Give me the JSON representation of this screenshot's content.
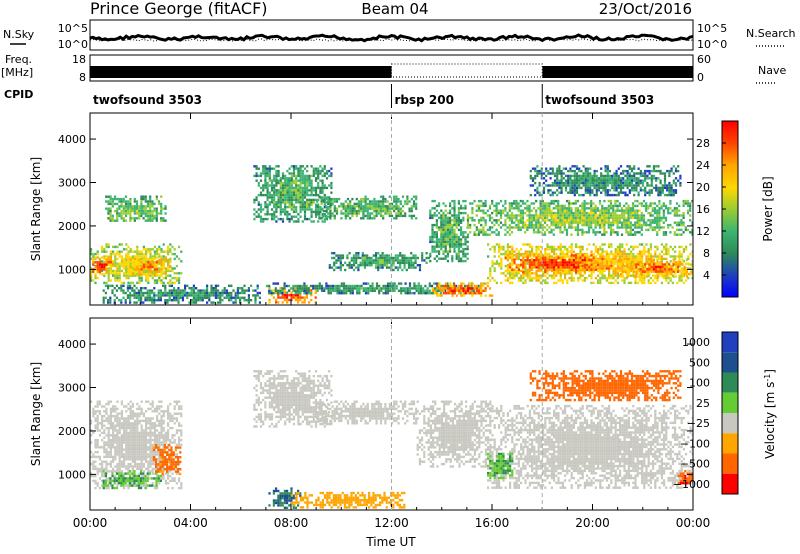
{
  "header": {
    "station": "Prince George (fitACF)",
    "beam": "Beam 04",
    "date": "23/Oct/2016"
  },
  "top_panels": {
    "nsky_label": "N.Sky",
    "nsearch_label": "N.Search",
    "noise_ticks": [
      "10^5",
      "10^0"
    ],
    "freq_label": "Freq.",
    "freq_unit": "[MHz]",
    "freq_ticks": [
      "18",
      "8"
    ],
    "nave_label": "Nave",
    "nave_ticks": [
      "60",
      "0"
    ],
    "cpid_label": "CPID",
    "cpid_segments": [
      {
        "label": "twofsound 3503",
        "start": "00:00",
        "end": "12:00"
      },
      {
        "label": "rbsp 200",
        "start": "12:00",
        "end": "18:00"
      },
      {
        "label": "twofsound 3503",
        "start": "18:00",
        "end": "24:00"
      }
    ]
  },
  "colors": {
    "power": [
      "#0000ff",
      "#1e3fbf",
      "#2e8b57",
      "#3cb371",
      "#9acd32",
      "#ffd700",
      "#ffa500",
      "#ff4500",
      "#ff0000"
    ],
    "velocity": [
      "#2040c0",
      "#1e5090",
      "#2e8b57",
      "#66cc33",
      "#c8c8c0",
      "#ffa500",
      "#ff6600",
      "#ff0000"
    ]
  },
  "chart_data": [
    {
      "type": "heatmap",
      "quantity": "Power",
      "xlabel": "Time UT",
      "ylabel": "Slant Range [km]",
      "xlim": [
        0,
        24
      ],
      "ylim": [
        180,
        4600
      ],
      "xticks": [
        "00:00",
        "04:00",
        "08:00",
        "12:00",
        "16:00",
        "20:00",
        "00:00"
      ],
      "yticks": [
        1000,
        2000,
        3000,
        4000
      ],
      "colorbar": {
        "label": "Power [dB]",
        "ticks": [
          4,
          8,
          12,
          16,
          20,
          24,
          28
        ],
        "range": [
          0,
          32
        ]
      },
      "regions": [
        {
          "t": [
            0.0,
            3.6
          ],
          "r": [
            700,
            1600
          ],
          "level": 0.62
        },
        {
          "t": [
            0.0,
            0.9
          ],
          "r": [
            900,
            1300
          ],
          "level": 0.9
        },
        {
          "t": [
            1.4,
            3.2
          ],
          "r": [
            900,
            1300
          ],
          "level": 0.8
        },
        {
          "t": [
            0.6,
            3.0
          ],
          "r": [
            2100,
            2700
          ],
          "level": 0.45
        },
        {
          "t": [
            0.5,
            6.8
          ],
          "r": [
            250,
            650
          ],
          "level": 0.3
        },
        {
          "t": [
            6.5,
            9.6
          ],
          "r": [
            2100,
            3400
          ],
          "level": 0.38
        },
        {
          "t": [
            7.1,
            9.0
          ],
          "r": [
            250,
            600
          ],
          "level": 0.92
        },
        {
          "t": [
            7.0,
            15.5
          ],
          "r": [
            450,
            700
          ],
          "level": 0.32
        },
        {
          "t": [
            9.0,
            13.0
          ],
          "r": [
            2200,
            2700
          ],
          "level": 0.42
        },
        {
          "t": [
            9.5,
            13.5
          ],
          "r": [
            1000,
            1400
          ],
          "level": 0.35
        },
        {
          "t": [
            13.6,
            16.0
          ],
          "r": [
            400,
            700
          ],
          "level": 0.9
        },
        {
          "t": [
            13.5,
            15.0
          ],
          "r": [
            1200,
            2600
          ],
          "level": 0.4
        },
        {
          "t": [
            15.8,
            24.0
          ],
          "r": [
            700,
            1600
          ],
          "level": 0.72
        },
        {
          "t": [
            16.5,
            20.5
          ],
          "r": [
            950,
            1350
          ],
          "level": 0.95
        },
        {
          "t": [
            21.0,
            24.0
          ],
          "r": [
            850,
            1250
          ],
          "level": 0.85
        },
        {
          "t": [
            15.0,
            24.0
          ],
          "r": [
            1800,
            2600
          ],
          "level": 0.5
        },
        {
          "t": [
            17.5,
            23.5
          ],
          "r": [
            2700,
            3400
          ],
          "level": 0.3
        }
      ]
    },
    {
      "type": "heatmap",
      "quantity": "Velocity",
      "xlabel": "Time UT",
      "ylabel": "Slant Range [km]",
      "xlim": [
        0,
        24
      ],
      "ylim": [
        180,
        4600
      ],
      "xticks": [
        "00:00",
        "04:00",
        "08:00",
        "12:00",
        "16:00",
        "20:00",
        "00:00"
      ],
      "yticks": [
        1000,
        2000,
        3000,
        4000
      ],
      "colorbar": {
        "label": "Velocity [m s^-1]",
        "ticks": [
          "1000",
          "500",
          "100",
          "25",
          "-25",
          "-100",
          "-500",
          "-1000"
        ]
      },
      "regions": [
        {
          "t": [
            0.0,
            3.6
          ],
          "r": [
            700,
            2700
          ],
          "value": 0
        },
        {
          "t": [
            0.5,
            2.8
          ],
          "r": [
            700,
            1100
          ],
          "value": 60
        },
        {
          "t": [
            2.5,
            3.6
          ],
          "r": [
            1000,
            1700
          ],
          "value": -150
        },
        {
          "t": [
            6.5,
            9.6
          ],
          "r": [
            2100,
            3400
          ],
          "value": 0
        },
        {
          "t": [
            7.1,
            8.4
          ],
          "r": [
            250,
            700
          ],
          "value": 300
        },
        {
          "t": [
            8.0,
            12.5
          ],
          "r": [
            250,
            600
          ],
          "value": -60
        },
        {
          "t": [
            9.0,
            13.0
          ],
          "r": [
            2200,
            2700
          ],
          "value": 0
        },
        {
          "t": [
            13.0,
            16.0
          ],
          "r": [
            1200,
            2700
          ],
          "value": 0
        },
        {
          "t": [
            15.8,
            24.0
          ],
          "r": [
            700,
            2600
          ],
          "value": 0
        },
        {
          "t": [
            15.8,
            16.8
          ],
          "r": [
            900,
            1500
          ],
          "value": 60
        },
        {
          "t": [
            17.5,
            23.5
          ],
          "r": [
            2700,
            3400
          ],
          "value": -300
        },
        {
          "t": [
            23.3,
            24.0
          ],
          "r": [
            800,
            1100
          ],
          "value": -400
        }
      ]
    }
  ]
}
